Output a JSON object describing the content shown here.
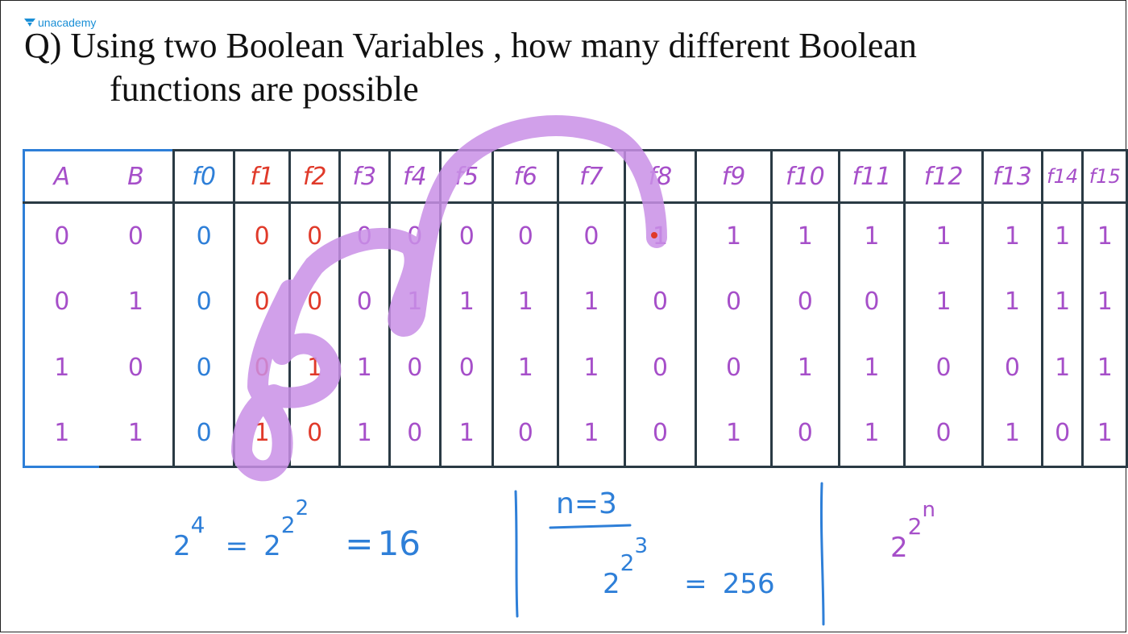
{
  "brand": {
    "name": "unacademy"
  },
  "question": {
    "line1": "Q) Using two Boolean Variables , how many different Boolean",
    "line2": "functions are possible"
  },
  "table": {
    "var_headers": [
      "A",
      "B"
    ],
    "func_headers": [
      "f0",
      "f1",
      "f2",
      "f3",
      "f4",
      "f5",
      "f6",
      "f7",
      "f8",
      "f9",
      "f10",
      "f11",
      "f12",
      "f13",
      "f14",
      "f15"
    ],
    "rows": [
      {
        "a": "0",
        "b": "0",
        "f": [
          "0",
          "0",
          "0",
          "0",
          "0",
          "0",
          "0",
          "0",
          "1",
          "1",
          "1",
          "1",
          "1",
          "1",
          "1",
          "1"
        ]
      },
      {
        "a": "0",
        "b": "1",
        "f": [
          "0",
          "0",
          "0",
          "0",
          "1",
          "1",
          "1",
          "1",
          "0",
          "0",
          "0",
          "0",
          "1",
          "1",
          "1",
          "1"
        ]
      },
      {
        "a": "1",
        "b": "0",
        "f": [
          "0",
          "0",
          "1",
          "1",
          "0",
          "0",
          "1",
          "1",
          "0",
          "0",
          "1",
          "1",
          "0",
          "0",
          "1",
          "1"
        ]
      },
      {
        "a": "1",
        "b": "1",
        "f": [
          "0",
          "1",
          "0",
          "1",
          "0",
          "1",
          "0",
          "1",
          "0",
          "1",
          "0",
          "1",
          "0",
          "1",
          "0",
          "1"
        ]
      }
    ]
  },
  "notes": {
    "eq1": {
      "base1": "2",
      "exp1": "4",
      "eq": "=",
      "base2": "2",
      "exp2": "2",
      "exp3": "2",
      "eq2": "=",
      "result": "16"
    },
    "eq2": {
      "label": "n=3",
      "base": "2",
      "exp1": "2",
      "exp2": "3",
      "eq": "=",
      "result": "256"
    },
    "eq3": {
      "base": "2",
      "exp1": "2",
      "exp2": "n"
    }
  },
  "colors": {
    "blue": "#2e7fd8",
    "red": "#e03a2a",
    "purple": "#a64fc9",
    "highlight": "#c98fe6"
  }
}
